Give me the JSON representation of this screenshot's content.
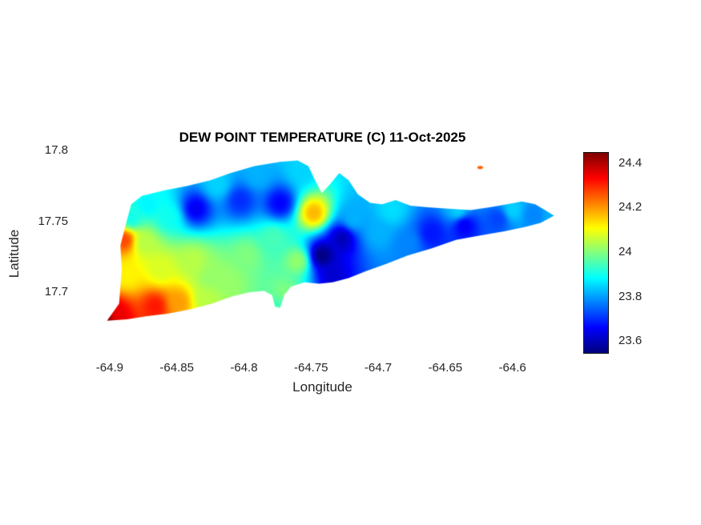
{
  "chart_data": {
    "type": "heatmap",
    "title": "DEW POINT TEMPERATURE (C) 11-Oct-2025",
    "xlabel": "Longitude",
    "ylabel": "Latitude",
    "xlim": [
      -64.925,
      -64.558
    ],
    "ylim": [
      17.655,
      17.8
    ],
    "xticks": [
      -64.9,
      -64.85,
      -64.8,
      -64.75,
      -64.7,
      -64.65,
      -64.6
    ],
    "xtick_labels": [
      "-64.9",
      "-64.85",
      "-64.8",
      "-64.75",
      "-64.7",
      "-64.65",
      "-64.6"
    ],
    "yticks": [
      17.8,
      17.75,
      17.7
    ],
    "ytick_labels": [
      "17.8",
      "17.75",
      "17.7"
    ],
    "colormap": "jet",
    "clim": [
      23.55,
      24.45
    ],
    "colorbar_tick_values": [
      24.4,
      24.2,
      24,
      23.8,
      23.6
    ],
    "colorbar_tick_labels": [
      "24.4",
      "24.2",
      "24",
      "23.8",
      "23.6"
    ],
    "grid": false,
    "legend": "colorbar-right",
    "boundary": [
      [
        -64.902,
        17.68
      ],
      [
        -64.893,
        17.692
      ],
      [
        -64.891,
        17.716
      ],
      [
        -64.892,
        17.733
      ],
      [
        -64.888,
        17.748
      ],
      [
        -64.884,
        17.762
      ],
      [
        -64.876,
        17.768
      ],
      [
        -64.859,
        17.772
      ],
      [
        -64.842,
        17.775
      ],
      [
        -64.825,
        17.779
      ],
      [
        -64.81,
        17.784
      ],
      [
        -64.792,
        17.789
      ],
      [
        -64.773,
        17.792
      ],
      [
        -64.76,
        17.793
      ],
      [
        -64.752,
        17.789
      ],
      [
        -64.747,
        17.779
      ],
      [
        -64.742,
        17.77
      ],
      [
        -64.736,
        17.776
      ],
      [
        -64.729,
        17.784
      ],
      [
        -64.722,
        17.779
      ],
      [
        -64.715,
        17.769
      ],
      [
        -64.706,
        17.763
      ],
      [
        -64.697,
        17.762
      ],
      [
        -64.687,
        17.765
      ],
      [
        -64.676,
        17.761
      ],
      [
        -64.663,
        17.76
      ],
      [
        -64.648,
        17.759
      ],
      [
        -64.631,
        17.758
      ],
      [
        -64.617,
        17.76
      ],
      [
        -64.604,
        17.762
      ],
      [
        -64.593,
        17.764
      ],
      [
        -64.583,
        17.762
      ],
      [
        -64.574,
        17.757
      ],
      [
        -64.569,
        17.754
      ],
      [
        -64.579,
        17.749
      ],
      [
        -64.591,
        17.746
      ],
      [
        -64.606,
        17.743
      ],
      [
        -64.624,
        17.74
      ],
      [
        -64.642,
        17.737
      ],
      [
        -64.66,
        17.731
      ],
      [
        -64.678,
        17.726
      ],
      [
        -64.694,
        17.72
      ],
      [
        -64.709,
        17.715
      ],
      [
        -64.722,
        17.71
      ],
      [
        -64.734,
        17.707
      ],
      [
        -64.744,
        17.706
      ],
      [
        -64.755,
        17.707
      ],
      [
        -64.765,
        17.704
      ],
      [
        -64.77,
        17.698
      ],
      [
        -64.773,
        17.689
      ],
      [
        -64.777,
        17.69
      ],
      [
        -64.779,
        17.698
      ],
      [
        -64.785,
        17.701
      ],
      [
        -64.796,
        17.7
      ],
      [
        -64.809,
        17.697
      ],
      [
        -64.824,
        17.692
      ],
      [
        -64.84,
        17.688
      ],
      [
        -64.856,
        17.685
      ],
      [
        -64.873,
        17.683
      ],
      [
        -64.887,
        17.681
      ]
    ],
    "islet": {
      "center": [
        -64.624,
        17.788
      ],
      "value": 24.25,
      "radius_px": 3.5
    },
    "samples": [
      [
        -64.902,
        17.68,
        24.45
      ],
      [
        -64.896,
        17.684,
        24.35
      ],
      [
        -64.889,
        17.737,
        24.28
      ],
      [
        -64.887,
        17.712,
        24.12
      ],
      [
        -64.875,
        17.735,
        24.05
      ],
      [
        -64.884,
        17.752,
        23.9
      ],
      [
        -64.866,
        17.69,
        24.32
      ],
      [
        -64.849,
        17.693,
        24.2
      ],
      [
        -64.828,
        17.695,
        24.05
      ],
      [
        -64.862,
        17.716,
        24.08
      ],
      [
        -64.838,
        17.722,
        24.05
      ],
      [
        -64.825,
        17.71,
        24.02
      ],
      [
        -64.812,
        17.708,
        24.02
      ],
      [
        -64.798,
        17.726,
        24.0
      ],
      [
        -64.856,
        17.753,
        23.9
      ],
      [
        -64.872,
        17.762,
        23.88
      ],
      [
        -64.836,
        17.759,
        23.65
      ],
      [
        -64.803,
        17.765,
        23.7
      ],
      [
        -64.773,
        17.763,
        23.66
      ],
      [
        -64.82,
        17.776,
        23.85
      ],
      [
        -64.79,
        17.783,
        23.82
      ],
      [
        -64.757,
        17.787,
        23.85
      ],
      [
        -64.778,
        17.738,
        23.95
      ],
      [
        -64.76,
        17.722,
        24.02
      ],
      [
        -64.748,
        17.756,
        24.18
      ],
      [
        -64.742,
        17.726,
        23.55
      ],
      [
        -64.734,
        17.712,
        23.62
      ],
      [
        -64.727,
        17.738,
        23.6
      ],
      [
        -64.77,
        17.7,
        24.0
      ],
      [
        -64.772,
        17.691,
        23.95
      ],
      [
        -64.718,
        17.752,
        23.82
      ],
      [
        -64.7,
        17.742,
        23.82
      ],
      [
        -64.69,
        17.758,
        23.86
      ],
      [
        -64.678,
        17.735,
        23.78
      ],
      [
        -64.66,
        17.742,
        23.68
      ],
      [
        -64.636,
        17.748,
        23.65
      ],
      [
        -64.64,
        17.757,
        23.85
      ],
      [
        -64.61,
        17.752,
        23.72
      ],
      [
        -64.6,
        17.758,
        23.85
      ],
      [
        -64.584,
        17.755,
        23.78
      ],
      [
        -64.569,
        17.754,
        23.82
      ],
      [
        -64.624,
        17.788,
        24.25
      ]
    ]
  }
}
